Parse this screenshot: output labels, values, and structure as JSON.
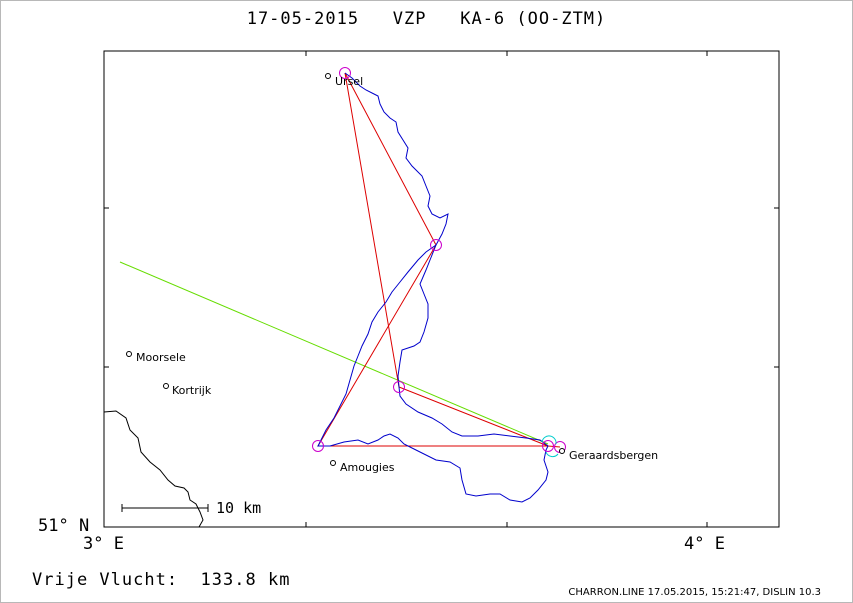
{
  "header": {
    "date": "17-05-2015",
    "club": "VZP",
    "aircraft": "KA-6 (OO-ZTM)"
  },
  "axes": {
    "lat_label": "51° N",
    "lon_left_label": "3° E",
    "lon_right_label": "4° E"
  },
  "places": [
    {
      "name": "Ursel"
    },
    {
      "name": "Moorsele"
    },
    {
      "name": "Kortrijk"
    },
    {
      "name": "Amougies"
    },
    {
      "name": "Geraardsbergen"
    }
  ],
  "scale": {
    "label": "10 km"
  },
  "footer": {
    "distance_label": "Vrije Vlucht:",
    "distance_value": "133.8 km"
  },
  "credit": "CHARRON.LINE 17.05.2015, 15:21:47, DISLIN 10.3",
  "colors": {
    "track": "#0000cc",
    "task": "#dd0000",
    "wind": "#66dd00",
    "turnpoint": "#cc00cc",
    "start": "#00cccc",
    "frame": "#000000"
  }
}
